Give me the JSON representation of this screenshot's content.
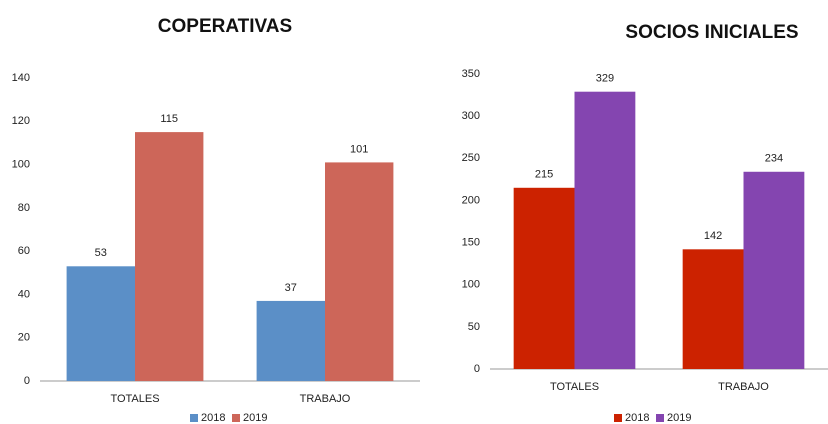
{
  "chart_data": [
    {
      "type": "bar",
      "title": "COPERATIVAS",
      "categories": [
        "TOTALES",
        "TRABAJO"
      ],
      "series": [
        {
          "name": "2018",
          "color": "#5b8fc7",
          "values": [
            53,
            37
          ]
        },
        {
          "name": "2019",
          "color": "#cd6659",
          "values": [
            115,
            101
          ]
        }
      ],
      "ylim": [
        0,
        140
      ],
      "yticks": [
        0,
        20,
        40,
        60,
        80,
        100,
        120,
        140
      ],
      "grid": false,
      "legend": "bottom"
    },
    {
      "type": "bar",
      "title": "SOCIOS INICIALES",
      "categories": [
        "TOTALES",
        "TRABAJO"
      ],
      "series": [
        {
          "name": "2018",
          "color": "#cc2200",
          "values": [
            215,
            142
          ]
        },
        {
          "name": "2019",
          "color": "#8445b0",
          "values": [
            329,
            234
          ]
        }
      ],
      "ylim": [
        0,
        350
      ],
      "yticks": [
        0,
        50,
        100,
        150,
        200,
        250,
        300,
        350
      ],
      "grid": false,
      "legend": "bottom"
    }
  ]
}
